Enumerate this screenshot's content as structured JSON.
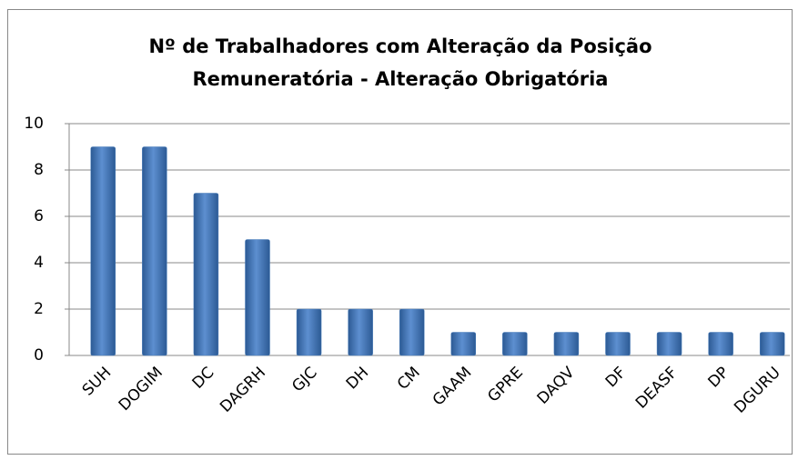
{
  "chart_data": {
    "type": "bar",
    "title": [
      "Nº de Trabalhadores com Alteração da Posição",
      "Remuneratória - Alteração Obrigatória"
    ],
    "categories": [
      "SUH",
      "DOGIM",
      "DC",
      "DAGRH",
      "GJC",
      "DH",
      "CM",
      "GAAM",
      "GPRE",
      "DAQV",
      "DF",
      "DEASF",
      "DP",
      "DGURU"
    ],
    "values": [
      9,
      9,
      7,
      5,
      2,
      2,
      2,
      1,
      1,
      1,
      1,
      1,
      1,
      1
    ],
    "color": "#4a7ebb",
    "ylim": [
      0,
      10
    ],
    "yticks": [
      0,
      2,
      4,
      6,
      8,
      10
    ],
    "grid": true
  }
}
